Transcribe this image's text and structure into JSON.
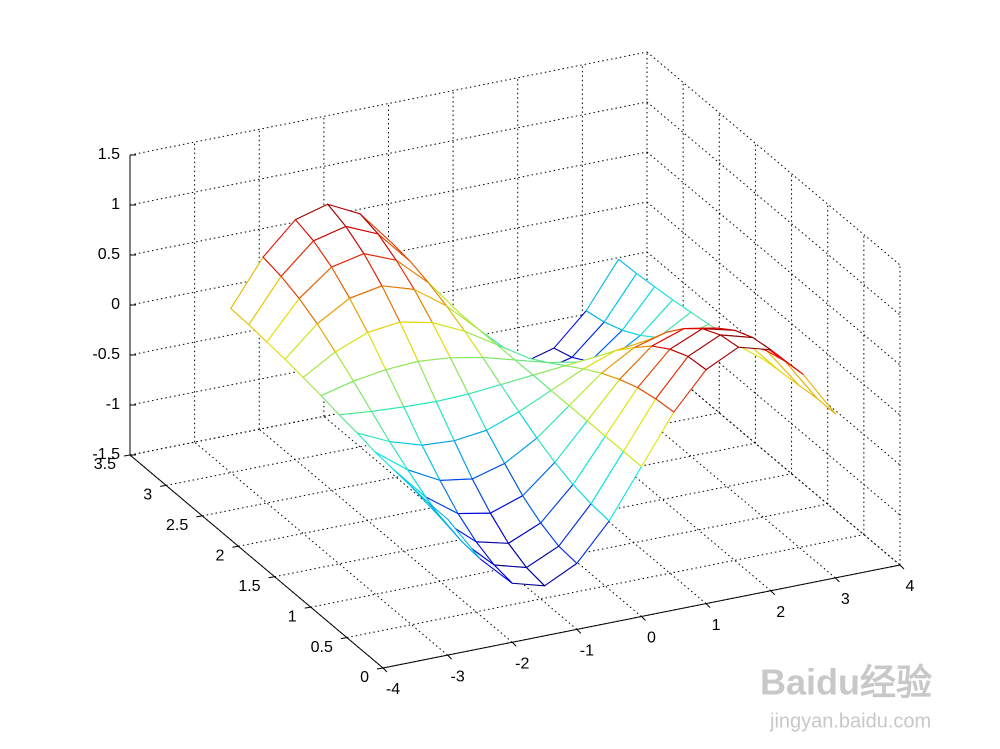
{
  "chart_data": {
    "type": "mesh",
    "x": [
      -3,
      -2.5,
      -2,
      -1.5,
      -1,
      -0.5,
      0,
      0.5,
      1,
      1.5,
      2,
      2.5,
      3
    ],
    "y": [
      0,
      0.25,
      0.5,
      0.75,
      1,
      1.25,
      1.5,
      1.75,
      2,
      2.25,
      2.5,
      2.75,
      3
    ],
    "z": [
      [
        -0.14,
        -0.6,
        -0.91,
        -1,
        -0.84,
        -0.48,
        0,
        0.48,
        0.84,
        1,
        0.91,
        0.6,
        0.14
      ],
      [
        -0.14,
        -0.58,
        -0.88,
        -0.97,
        -0.82,
        -0.46,
        0,
        0.46,
        0.82,
        0.97,
        0.88,
        0.58,
        0.14
      ],
      [
        -0.12,
        -0.53,
        -0.8,
        -0.88,
        -0.74,
        -0.42,
        0,
        0.42,
        0.74,
        0.88,
        0.8,
        0.53,
        0.12
      ],
      [
        -0.1,
        -0.44,
        -0.67,
        -0.73,
        -0.62,
        -0.35,
        0,
        0.35,
        0.62,
        0.73,
        0.67,
        0.44,
        0.1
      ],
      [
        -0.08,
        -0.32,
        -0.49,
        -0.54,
        -0.45,
        -0.26,
        0,
        0.26,
        0.45,
        0.54,
        0.49,
        0.32,
        0.08
      ],
      [
        -0.04,
        -0.19,
        -0.29,
        -0.31,
        -0.27,
        -0.15,
        0,
        0.15,
        0.27,
        0.31,
        0.29,
        0.19,
        0.04
      ],
      [
        -0.01,
        -0.04,
        -0.06,
        -0.07,
        -0.06,
        -0.03,
        0,
        0.03,
        0.06,
        0.07,
        0.06,
        0.04,
        0.01
      ],
      [
        0.03,
        0.11,
        0.16,
        0.18,
        0.15,
        0.09,
        0,
        -0.09,
        -0.15,
        -0.18,
        -0.16,
        -0.11,
        -0.03
      ],
      [
        0.06,
        0.25,
        0.38,
        0.42,
        0.35,
        0.2,
        0,
        -0.2,
        -0.35,
        -0.42,
        -0.38,
        -0.25,
        -0.06
      ],
      [
        0.09,
        0.38,
        0.57,
        0.63,
        0.53,
        0.3,
        0,
        -0.3,
        -0.53,
        -0.63,
        -0.57,
        -0.38,
        -0.09
      ],
      [
        0.11,
        0.48,
        0.73,
        0.8,
        0.67,
        0.38,
        0,
        -0.38,
        -0.67,
        -0.8,
        -0.73,
        -0.48,
        -0.11
      ],
      [
        0.13,
        0.55,
        0.84,
        0.92,
        0.78,
        0.44,
        0,
        -0.44,
        -0.78,
        -0.92,
        -0.84,
        -0.55,
        -0.13
      ],
      [
        0.14,
        0.59,
        0.9,
        0.99,
        0.83,
        0.47,
        0,
        -0.47,
        -0.83,
        -0.99,
        -0.9,
        -0.59,
        -0.14
      ]
    ],
    "xlim": [
      -4,
      4
    ],
    "ylim": [
      0,
      3.5
    ],
    "zlim": [
      -1.5,
      1.5
    ],
    "xticks": [
      -4,
      -3,
      -2,
      -1,
      0,
      1,
      2,
      3,
      4
    ],
    "yticks": [
      0,
      0.5,
      1,
      1.5,
      2,
      2.5,
      3,
      3.5
    ],
    "zticks": [
      -1.5,
      -1,
      -0.5,
      0,
      0.5,
      1,
      1.5
    ],
    "grid": true,
    "colormap": "jet"
  },
  "watermark": [
    "Baidu经验",
    "jingyan.baidu.com"
  ]
}
